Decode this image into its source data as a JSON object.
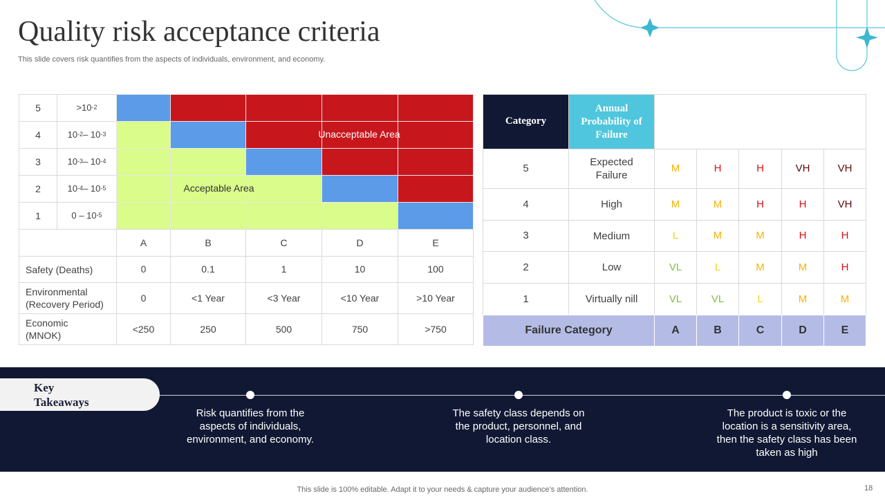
{
  "title": "Quality risk acceptance criteria",
  "subtitle": "This slide covers risk quantifies from the aspects of individuals, environment, and economy.",
  "left_table": {
    "rows": [
      {
        "level": "5",
        "range": [
          {
            "text": ">10"
          },
          {
            "sup": "-2"
          }
        ]
      },
      {
        "level": "4",
        "range": [
          {
            "text": "10"
          },
          {
            "sup": "-2"
          },
          {
            "text": " – 10"
          },
          {
            "sup": "-3"
          }
        ]
      },
      {
        "level": "3",
        "range": [
          {
            "text": "10"
          },
          {
            "sup": "-3"
          },
          {
            "text": " – 10"
          },
          {
            "sup": "-4"
          }
        ]
      },
      {
        "level": "2",
        "range": [
          {
            "text": "10"
          },
          {
            "sup": "-4"
          },
          {
            "text": " – 10"
          },
          {
            "sup": "-5"
          }
        ]
      },
      {
        "level": "1",
        "range": [
          {
            "text": "0 – 10"
          },
          {
            "sup": "-5"
          }
        ]
      }
    ],
    "area_labels": [
      "Unacceptable Area",
      "Acceptable Area"
    ],
    "columns": [
      "A",
      "B",
      "C",
      "D",
      "E"
    ],
    "impact_rows": [
      {
        "label": [
          "Safety (Deaths)"
        ],
        "values": [
          "0",
          "0.1",
          "1",
          "10",
          "100"
        ]
      },
      {
        "label": [
          "Environmental",
          "(Recovery Period)"
        ],
        "values": [
          "0",
          "<1 Year",
          "<3 Year",
          "<10 Year",
          ">10 Year"
        ]
      },
      {
        "label": [
          "Economic",
          "(MNOK)"
        ],
        "values": [
          "<250",
          "250",
          "500",
          "750",
          ">750"
        ]
      }
    ]
  },
  "right_table": {
    "header": [
      "Category",
      "Annual Probability of Failure"
    ],
    "rows": [
      {
        "level": "5",
        "category": "Expected Failure",
        "ratings": [
          "M",
          "H",
          "H",
          "VH",
          "VH"
        ]
      },
      {
        "level": "4",
        "category": "High",
        "ratings": [
          "M",
          "M",
          "H",
          "H",
          "VH"
        ]
      },
      {
        "level": "3",
        "category": "Medium",
        "ratings": [
          "L",
          "M",
          "M",
          "H",
          "H"
        ]
      },
      {
        "level": "2",
        "category": "Low",
        "ratings": [
          "VL",
          "L",
          "M",
          "M",
          "H"
        ]
      },
      {
        "level": "1",
        "category": "Virtually nill",
        "ratings": [
          "VL",
          "VL",
          "L",
          "M",
          "M"
        ]
      }
    ],
    "footer": {
      "label": "Failure Category",
      "columns": [
        "A",
        "B",
        "C",
        "D",
        "E"
      ]
    }
  },
  "takeaways": {
    "heading": "Key Takeaways",
    "items": [
      "Risk quantifies from the aspects of individuals, environment,  and economy.",
      "The safety class depends on the product, personnel, and location class.",
      "The product is toxic or the location is a sensitivity area, then the safety class has been taken as high"
    ]
  },
  "footer_note": "This slide is 100% editable. Adapt it to your needs & capture your audience’s attention.",
  "page_number": "18"
}
